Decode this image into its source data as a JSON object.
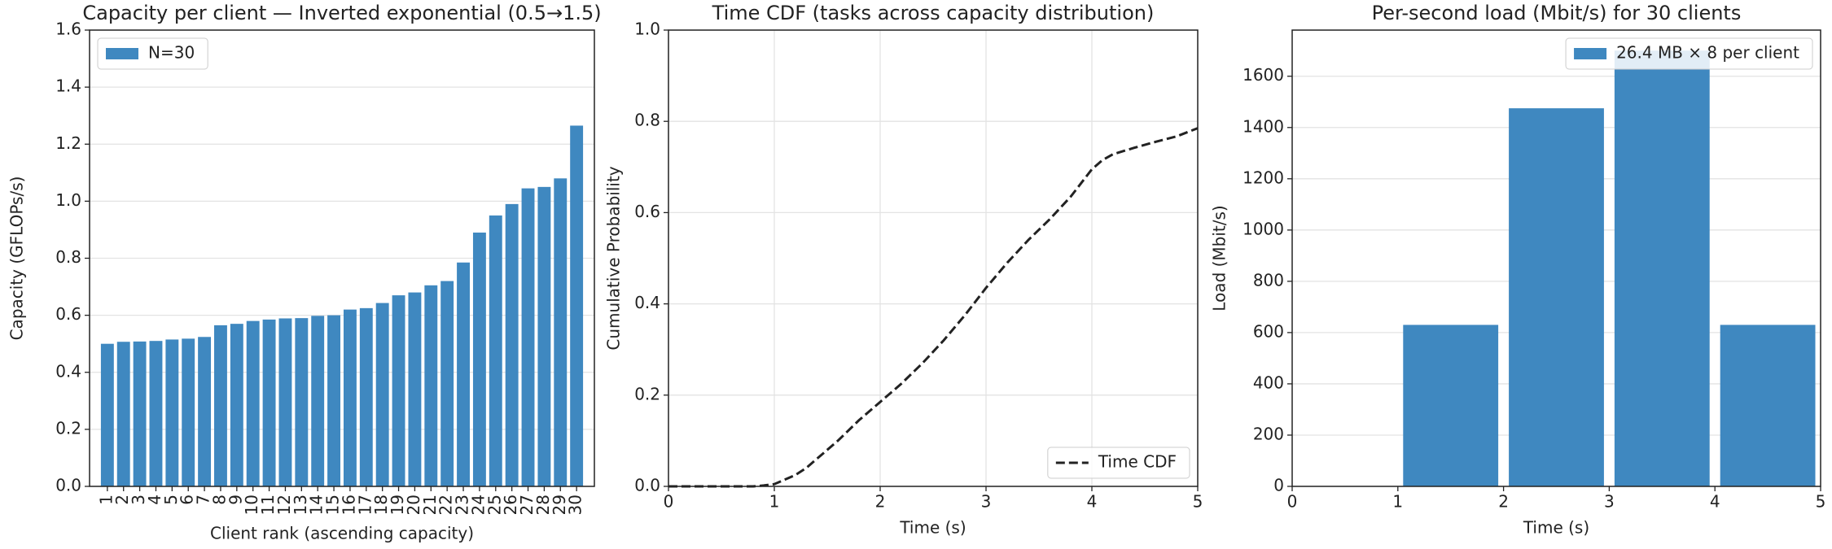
{
  "chart_data": [
    {
      "type": "bar",
      "title": "Capacity per client — Inverted exponential (0.5→1.5)",
      "x_label": "Client rank (ascending capacity)",
      "y_label": "Capacity (GFLOPs/s)",
      "categories": [
        "1",
        "2",
        "3",
        "4",
        "5",
        "6",
        "7",
        "8",
        "9",
        "10",
        "11",
        "12",
        "13",
        "14",
        "15",
        "16",
        "17",
        "18",
        "19",
        "20",
        "21",
        "22",
        "23",
        "24",
        "25",
        "26",
        "27",
        "28",
        "29",
        "30"
      ],
      "series": [
        {
          "name": "N=30",
          "color": "#3f88c0",
          "values": [
            0.5,
            0.507,
            0.508,
            0.51,
            0.515,
            0.518,
            0.524,
            0.565,
            0.57,
            0.58,
            0.585,
            0.589,
            0.59,
            0.598,
            0.6,
            0.62,
            0.625,
            0.643,
            0.67,
            0.68,
            0.705,
            0.72,
            0.785,
            0.89,
            0.95,
            0.99,
            1.045,
            1.05,
            1.08,
            1.265
          ]
        }
      ],
      "ylim": [
        0,
        1.6
      ],
      "yticks": [
        {
          "value": 0,
          "label": "0.0"
        },
        0.2,
        0.4,
        0.6,
        0.8,
        {
          "value": 1,
          "label": "1.0"
        },
        1.2,
        1.4,
        1.6
      ],
      "grid": "y",
      "legend": "upper left"
    },
    {
      "type": "line",
      "title": "Time CDF (tasks across capacity distribution)",
      "x_label": "Time (s)",
      "y_label": "Cumulative Probability",
      "x": [
        0,
        0.8,
        0.9,
        1.0,
        1.1,
        1.2,
        1.3,
        1.4,
        1.6,
        1.8,
        2.0,
        2.2,
        2.4,
        2.6,
        2.8,
        3.0,
        3.2,
        3.4,
        3.6,
        3.8,
        4.0,
        4.1,
        4.2,
        4.4,
        4.6,
        4.8,
        5.0
      ],
      "series": [
        {
          "name": "Time CDF",
          "color": "#222222",
          "values": [
            0,
            0,
            0.002,
            0.005,
            0.015,
            0.025,
            0.04,
            0.06,
            0.1,
            0.145,
            0.185,
            0.225,
            0.27,
            0.32,
            0.375,
            0.435,
            0.49,
            0.54,
            0.585,
            0.635,
            0.695,
            0.715,
            0.728,
            0.742,
            0.755,
            0.767,
            0.785
          ]
        }
      ],
      "xlim": [
        0,
        5
      ],
      "xticks": [
        0,
        1,
        2,
        3,
        4,
        5
      ],
      "ylim": [
        0,
        1
      ],
      "yticks": [
        {
          "value": 0,
          "label": "0.0"
        },
        0.2,
        0.4,
        0.6,
        0.8,
        {
          "value": 1,
          "label": "1.0"
        }
      ],
      "grid": "both",
      "legend": "lower right"
    },
    {
      "type": "histogram",
      "title": "Per-second load (Mbit/s) for 30 clients",
      "x_label": "Time (s)",
      "y_label": "Load (Mbit/s)",
      "bins": [
        1,
        2,
        3,
        4,
        5
      ],
      "series": [
        {
          "name": "26.4 MB × 8 per client",
          "color": "#3f88c0",
          "values": [
            630,
            1475,
            1700,
            630
          ]
        }
      ],
      "xlim": [
        0,
        5
      ],
      "xticks": [
        0,
        1,
        2,
        3,
        4,
        5
      ],
      "ylim": [
        0,
        1780
      ],
      "yticks": [
        0,
        200,
        400,
        600,
        800,
        1000,
        1200,
        1400,
        1600
      ],
      "grid": "y",
      "legend": "upper right"
    }
  ]
}
